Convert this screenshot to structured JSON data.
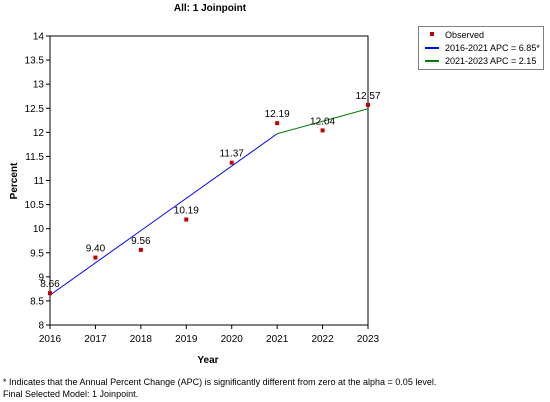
{
  "chart_data": {
    "type": "scatter",
    "title": "All: 1 Joinpoint",
    "xlabel": "Year",
    "ylabel": "Percent",
    "xlim": [
      2016,
      2023
    ],
    "ylim": [
      8,
      14
    ],
    "x_ticks": [
      "2016",
      "2017",
      "2018",
      "2019",
      "2020",
      "2021",
      "2022",
      "2023"
    ],
    "y_ticks": [
      "8",
      "8.5",
      "9",
      "9.5",
      "10",
      "10.5",
      "11",
      "11.5",
      "12",
      "12.5",
      "13",
      "13.5",
      "14"
    ],
    "grid": false,
    "legend_position": "top-right, outside plot",
    "observed": {
      "name": "Observed",
      "x": [
        2016,
        2017,
        2018,
        2019,
        2020,
        2021,
        2022,
        2023
      ],
      "y": [
        8.66,
        9.4,
        9.56,
        10.19,
        11.37,
        12.19,
        12.04,
        12.57
      ],
      "labels": [
        "8.66",
        "9.40",
        "9.56",
        "10.19",
        "11.37",
        "12.19",
        "12.04",
        "12.57"
      ],
      "color": "#c00000"
    },
    "series": [
      {
        "name": "2016-2021 APC  = 6.85*",
        "x": [
          2016,
          2021
        ],
        "y": [
          8.62,
          11.97
        ],
        "color": "#0000ff"
      },
      {
        "name": "2021-2023 APC  = 2.15",
        "x": [
          2021,
          2023
        ],
        "y": [
          11.97,
          12.49
        ],
        "color": "#008000"
      }
    ]
  },
  "footnotes": {
    "line1": "* Indicates that the Annual Percent Change (APC) is significantly different from zero at the alpha = 0.05 level.",
    "line2": "Final Selected Model: 1 Joinpoint."
  }
}
